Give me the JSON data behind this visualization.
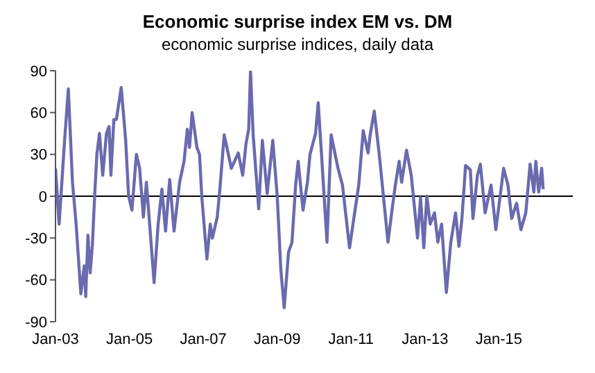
{
  "chart_data": {
    "type": "line",
    "title": "Economic surprise index EM vs. DM",
    "subtitle": "economic surprise indices, daily data",
    "x": [
      "2003-01-01",
      "2003-02-06",
      "2003-04-01",
      "2003-05-08",
      "2003-06-18",
      "2003-07-24",
      "2003-09-09",
      "2003-10-12",
      "2003-10-27",
      "2003-11-18",
      "2003-12-10",
      "2004-01-01",
      "2004-01-23",
      "2004-02-14",
      "2004-03-11",
      "2004-04-12",
      "2004-05-19",
      "2004-06-14",
      "2004-07-02",
      "2004-07-31",
      "2004-08-25",
      "2004-10-12",
      "2004-11-25",
      "2004-12-24",
      "2005-01-26",
      "2005-03-11",
      "2005-04-12",
      "2005-05-19",
      "2005-06-18",
      "2005-09-02",
      "2005-10-12",
      "2005-11-18",
      "2005-12-24",
      "2006-02-03",
      "2006-03-18",
      "2006-05-12",
      "2006-06-25",
      "2006-07-27",
      "2006-08-18",
      "2006-09-13",
      "2006-10-30",
      "2006-11-25",
      "2006-12-17",
      "2007-02-06",
      "2007-03-11",
      "2007-04-01",
      "2007-05-19",
      "2007-06-14",
      "2007-07-27",
      "2007-10-05",
      "2007-12-13",
      "2008-01-26",
      "2008-02-28",
      "2008-03-25",
      "2008-04-12",
      "2008-05-08",
      "2008-07-02",
      "2008-08-07",
      "2008-09-24",
      "2008-11-18",
      "2009-01-01",
      "2009-02-06",
      "2009-03-11",
      "2009-04-23",
      "2009-05-27",
      "2009-07-02",
      "2009-07-27",
      "2009-09-13",
      "2009-10-27",
      "2009-11-21",
      "2010-01-15",
      "2010-02-10",
      "2010-03-14",
      "2010-05-08",
      "2010-06-18",
      "2010-08-25",
      "2010-10-08",
      "2010-12-17",
      "2011-01-30",
      "2011-03-18",
      "2011-05-01",
      "2011-06-18",
      "2011-07-09",
      "2011-08-18",
      "2011-10-05",
      "2011-11-10",
      "2012-01-01",
      "2012-02-06",
      "2012-03-14",
      "2012-04-20",
      "2012-05-15",
      "2012-07-02",
      "2012-08-18",
      "2012-10-19",
      "2012-11-18",
      "2012-12-20",
      "2013-01-19",
      "2013-02-21",
      "2013-04-05",
      "2013-05-08",
      "2013-06-14",
      "2013-07-31",
      "2013-09-13",
      "2013-10-30",
      "2013-12-02",
      "2014-01-01",
      "2014-02-06",
      "2014-03-25",
      "2014-04-20",
      "2014-06-03",
      "2014-07-02",
      "2014-08-18",
      "2014-10-16",
      "2014-12-02",
      "2015-01-19",
      "2015-02-17",
      "2015-04-01",
      "2015-05-08",
      "2015-06-25",
      "2015-08-07",
      "2015-09-24",
      "2015-11-06",
      "2015-12-13",
      "2016-01-01",
      "2016-01-30",
      "2016-02-28",
      "2016-03-14"
    ],
    "series": [
      {
        "color": "#6a6aaf",
        "values": [
          20,
          -20,
          40,
          77,
          10,
          -20,
          -70,
          -50,
          -72,
          -28,
          -55,
          -35,
          0,
          30,
          45,
          15,
          45,
          50,
          15,
          55,
          55,
          78,
          40,
          0,
          -10,
          30,
          20,
          -15,
          10,
          -62,
          -20,
          5,
          -25,
          12,
          -25,
          10,
          25,
          48,
          35,
          60,
          35,
          30,
          0,
          -45,
          -20,
          -30,
          -15,
          5,
          44,
          20,
          31,
          15,
          38,
          48,
          90,
          44,
          -9,
          40,
          2,
          40,
          0,
          -53,
          -80,
          -40,
          -33,
          8,
          25,
          -10,
          10,
          30,
          45,
          67,
          31,
          -33,
          44,
          20,
          8,
          -37,
          -15,
          8,
          47,
          31,
          44,
          61,
          31,
          5,
          -33,
          -12,
          8,
          25,
          10,
          33,
          15,
          -30,
          -1,
          -37,
          0,
          -20,
          -12,
          -33,
          -20,
          -69,
          -33,
          -12,
          -36,
          -16,
          22,
          19,
          -16,
          15,
          23,
          -12,
          8,
          -24,
          3,
          20,
          8,
          -16,
          -5,
          -24,
          -12,
          23,
          3,
          25,
          3,
          20,
          5
        ]
      }
    ],
    "xlim": [
      "2003-01-01",
      "2017-01-01"
    ],
    "xticks": [
      {
        "value": "2003-01",
        "label": "Jan-03"
      },
      {
        "value": "2005-01",
        "label": "Jan-05"
      },
      {
        "value": "2007-01",
        "label": "Jan-07"
      },
      {
        "value": "2009-01",
        "label": "Jan-09"
      },
      {
        "value": "2011-01",
        "label": "Jan-11"
      },
      {
        "value": "2013-01",
        "label": "Jan-13"
      },
      {
        "value": "2015-01",
        "label": "Jan-15"
      }
    ],
    "ylim": [
      -90,
      90
    ],
    "yticks": [
      -90,
      -60,
      -30,
      0,
      30,
      60,
      90
    ],
    "grid": false,
    "ref_lines": [
      {
        "axis": "y",
        "value": 0,
        "color": "#000000"
      }
    ],
    "legend": false,
    "marker": "none",
    "line_style": "solid"
  }
}
